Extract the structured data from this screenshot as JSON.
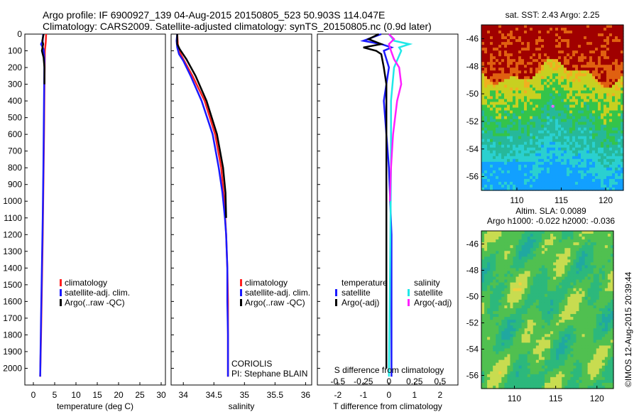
{
  "header": {
    "title_line1": "Argo profile: IF 6900927_139 04-Aug-2015 20150805_523 50.903S 114.047E",
    "title_line2": "Climatology: CARS2009. Satellite-adjusted climatology: synTS_20150805.nc (0.9d later)"
  },
  "colors": {
    "climatology": "#ff2020",
    "satellite": "#1a1aff",
    "argo": "#000000",
    "sal_satellite": "#20e8e8",
    "sal_argo": "#ff20ff"
  },
  "chart_data": [
    {
      "type": "line",
      "panel": "temperature",
      "xlabel": "temperature (deg C)",
      "ylabel": "",
      "xlim": [
        -2,
        31
      ],
      "ylim": [
        2100,
        0
      ],
      "xticks": [
        "0",
        "5",
        "10",
        "15",
        "20",
        "25",
        "30"
      ],
      "yticks": [
        "0",
        "100",
        "200",
        "300",
        "400",
        "500",
        "600",
        "700",
        "800",
        "900",
        "1000",
        "1100",
        "1200",
        "1300",
        "1400",
        "1500",
        "1600",
        "1700",
        "1800",
        "1900",
        "2000"
      ],
      "legend": [
        "climatology",
        "satellite-adj. clim.",
        "Argo(..raw -QC)"
      ],
      "legend_position": "lower-middle",
      "series": [
        {
          "name": "climatology",
          "color_key": "climatology",
          "x": [
            3.0,
            2.9,
            2.7,
            2.6,
            2.5,
            2.35,
            2.2,
            2.0,
            1.8,
            1.6
          ],
          "y": [
            0,
            50,
            100,
            300,
            600,
            900,
            1200,
            1500,
            1800,
            2050
          ]
        },
        {
          "name": "satellite-adj. clim.",
          "color_key": "satellite",
          "x": [
            2.3,
            2.2,
            1.8,
            2.4,
            2.6,
            2.5,
            2.35,
            2.2,
            2.0,
            1.8,
            1.6
          ],
          "y": [
            0,
            40,
            60,
            90,
            150,
            400,
            800,
            1100,
            1400,
            1700,
            2050
          ]
        },
        {
          "name": "Argo(..raw -QC)",
          "color_key": "argo",
          "x": [
            2.4,
            2.1,
            2.3,
            2.0,
            2.4,
            2.6,
            2.6
          ],
          "y": [
            0,
            40,
            60,
            100,
            140,
            200,
            300
          ]
        }
      ]
    },
    {
      "type": "line",
      "panel": "salinity",
      "xlabel": "salinity",
      "xlim": [
        33.8,
        36.1
      ],
      "ylim": [
        2100,
        0
      ],
      "xticks": [
        "34",
        "34.5",
        "35",
        "35.5",
        "36"
      ],
      "legend": [
        "climatology",
        "satellite-adj. clim.",
        "Argo(..raw -QC)"
      ],
      "legend_position": "lower-middle",
      "annotation": [
        "CORIOLIS",
        "PI: Stephane BLAIN"
      ],
      "series": [
        {
          "name": "climatology",
          "color_key": "climatology",
          "x": [
            33.9,
            33.91,
            33.93,
            34.0,
            34.15,
            34.35,
            34.52,
            34.62,
            34.67,
            34.7,
            34.72,
            34.73,
            34.73,
            34.73
          ],
          "y": [
            0,
            60,
            100,
            150,
            250,
            400,
            600,
            800,
            1000,
            1200,
            1400,
            1600,
            1800,
            2050
          ]
        },
        {
          "name": "satellite-adj. clim.",
          "color_key": "satellite",
          "x": [
            33.9,
            33.89,
            33.9,
            33.93,
            34.0,
            34.12,
            34.3,
            34.48,
            34.58,
            34.64,
            34.68,
            34.7,
            34.72,
            34.72,
            34.73,
            34.73
          ],
          "y": [
            0,
            40,
            80,
            120,
            160,
            250,
            400,
            600,
            800,
            950,
            1100,
            1200,
            1400,
            1600,
            1800,
            2050
          ]
        },
        {
          "name": "Argo(..raw -QC)",
          "color_key": "argo",
          "x": [
            33.9,
            33.9,
            33.94,
            34.05,
            34.2,
            34.38,
            34.55,
            34.65,
            34.69,
            34.7
          ],
          "y": [
            0,
            60,
            90,
            150,
            250,
            400,
            600,
            800,
            950,
            1100
          ]
        }
      ]
    },
    {
      "type": "line",
      "panel": "difference",
      "xlabel": "T difference from climatology",
      "xlabel_top": "S difference from climatology",
      "xlim": [
        -2.8,
        2.7
      ],
      "xlim_top": [
        -0.7,
        0.675
      ],
      "ylim": [
        2100,
        0
      ],
      "xticks": [
        "-2",
        "-1",
        "0",
        "1",
        "2"
      ],
      "xticks_top": [
        "-0.5",
        "-0.25",
        "0",
        "0.25",
        "0.5"
      ],
      "legend_groups": [
        {
          "title": "temperature",
          "entries": [
            "satellite",
            "Argo(-adj)"
          ]
        },
        {
          "title": "salinity",
          "entries": [
            "satellite",
            "Argo(-adj)"
          ]
        }
      ],
      "series": [
        {
          "name": "T satellite",
          "color_key": "satellite",
          "x": [
            -0.3,
            -1.0,
            -0.3,
            0.1,
            -0.2,
            0.0,
            -0.1,
            -0.2,
            -0.1,
            0.0,
            0.1,
            0.1,
            0.1,
            0.1
          ],
          "y": [
            0,
            40,
            60,
            80,
            100,
            200,
            300,
            400,
            600,
            800,
            1200,
            1600,
            1900,
            2050
          ]
        },
        {
          "name": "T Argo(-adj)",
          "color_key": "argo",
          "x": [
            -0.4,
            -0.8,
            -0.3,
            -1.0,
            -0.5,
            -0.3,
            -0.2,
            -0.1,
            -0.1,
            -0.1,
            -0.1,
            -0.1,
            -0.1,
            -0.1
          ],
          "y": [
            0,
            30,
            60,
            80,
            100,
            120,
            200,
            300,
            400,
            600,
            900,
            1300,
            1700,
            2000
          ]
        },
        {
          "name": "S satellite",
          "color_key": "sal_satellite",
          "x": [
            0.0,
            0.05,
            0.2,
            0.1,
            0.12,
            0.05,
            0.02,
            0.02,
            0.01,
            0.0
          ],
          "y": [
            0,
            40,
            60,
            80,
            100,
            200,
            400,
            800,
            1500,
            2050
          ]
        },
        {
          "name": "S Argo(-adj)",
          "color_key": "sal_argo",
          "x": [
            0.0,
            0.05,
            0.0,
            0.02,
            0.05,
            0.1,
            0.12,
            0.08,
            0.04,
            0.02,
            0.01
          ],
          "y": [
            0,
            30,
            60,
            100,
            150,
            200,
            300,
            400,
            600,
            800,
            1000
          ]
        }
      ]
    },
    {
      "type": "heatmap",
      "panel": "sst_map",
      "title": "sat. SST: 2.43 Argo: 2.25",
      "xticks": [
        "110",
        "115",
        "120"
      ],
      "yticks": [
        "-46",
        "-48",
        "-50",
        "-52",
        "-54",
        "-56"
      ],
      "xlim": [
        106,
        122
      ],
      "ylim": [
        -57,
        -45
      ],
      "marker": {
        "lon": 114.047,
        "lat": -50.903
      },
      "colorscale": [
        "#12a0ff",
        "#2ad0d0",
        "#26b89a",
        "#34c44a",
        "#c8d020",
        "#f0b020",
        "#e06010",
        "#a00000"
      ]
    },
    {
      "type": "heatmap",
      "panel": "sla_map",
      "title_line1": "Altim. SLA: 0.0089",
      "title_line2": "Argo h1000: -0.022 h2000: -0.036",
      "xticks": [
        "110",
        "115",
        "120"
      ],
      "yticks": [
        "-46",
        "-48",
        "-50",
        "-52",
        "-54",
        "-56"
      ],
      "xlim": [
        106,
        122
      ],
      "ylim": [
        -57,
        -45
      ],
      "colorscale": [
        "#20a8a0",
        "#2cb87c",
        "#50c050",
        "#c8dc50",
        "#f0d040"
      ]
    }
  ],
  "footer": {
    "stamp": "©IMOS 12-Aug-2015 20:39:44"
  }
}
